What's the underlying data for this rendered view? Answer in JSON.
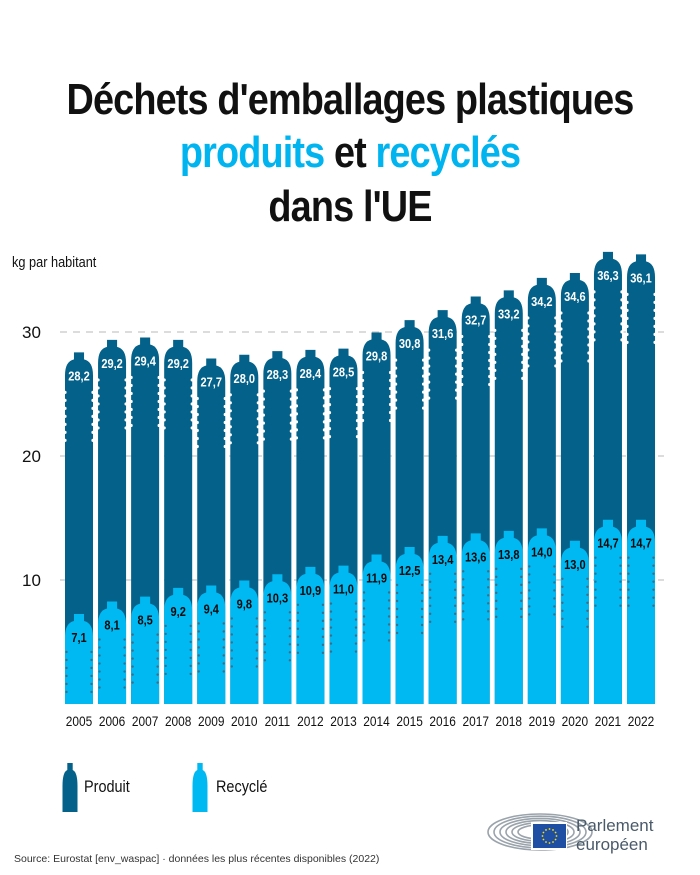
{
  "title": {
    "line1": "Déchets d'emballages plastiques",
    "line2_part1": "produits",
    "line2_part2": " et ",
    "line2_part3": "recyclés",
    "line3": "dans l'UE"
  },
  "colors": {
    "produced": "#03618a",
    "recycled": "#00b9f2",
    "accent": "#00b4f0",
    "grid": "#c8c8c8",
    "text": "#111111"
  },
  "legend": {
    "produced_label": "Produit",
    "recycled_label": "Recyclé"
  },
  "source": "Source: Eurostat [env_waspac] ·  données les plus récentes disponibles (2022)",
  "logo": {
    "line1": "Parlement",
    "line2": "européen"
  },
  "chart_data": {
    "type": "bar",
    "title": "Déchets d'emballages plastiques produits et recyclés dans l'UE",
    "xlabel": "",
    "ylabel": "kg par habitant",
    "ylim": [
      0,
      37
    ],
    "yticks": [
      10,
      20,
      30
    ],
    "grid": true,
    "legend_position": "bottom-left",
    "categories": [
      "2005",
      "2006",
      "2007",
      "2008",
      "2009",
      "2010",
      "2011",
      "2012",
      "2013",
      "2014",
      "2015",
      "2016",
      "2017",
      "2018",
      "2019",
      "2020",
      "2021",
      "2022"
    ],
    "series": [
      {
        "name": "Produit",
        "values": [
          28.2,
          29.2,
          29.4,
          29.2,
          27.7,
          28.0,
          28.3,
          28.4,
          28.5,
          29.8,
          30.8,
          31.6,
          32.7,
          33.2,
          34.2,
          34.6,
          36.3,
          36.1
        ],
        "labels": [
          "28,2",
          "29,2",
          "29,4",
          "29,2",
          "27,7",
          "28,0",
          "28,3",
          "28,4",
          "28,5",
          "29,8",
          "30,8",
          "31,6",
          "32,7",
          "33,2",
          "34,2",
          "34,6",
          "36,3",
          "36,1"
        ]
      },
      {
        "name": "Recyclé",
        "values": [
          7.1,
          8.1,
          8.5,
          9.2,
          9.4,
          9.8,
          10.3,
          10.9,
          11.0,
          11.9,
          12.5,
          13.4,
          13.6,
          13.8,
          14.0,
          13.0,
          14.7,
          14.7
        ],
        "labels": [
          "7,1",
          "8,1",
          "8,5",
          "9,2",
          "9,4",
          "9,8",
          "10,3",
          "10,9",
          "11,0",
          "11,9",
          "12,5",
          "13,4",
          "13,6",
          "13,8",
          "14,0",
          "13,0",
          "14,7",
          "14,7"
        ]
      }
    ]
  }
}
